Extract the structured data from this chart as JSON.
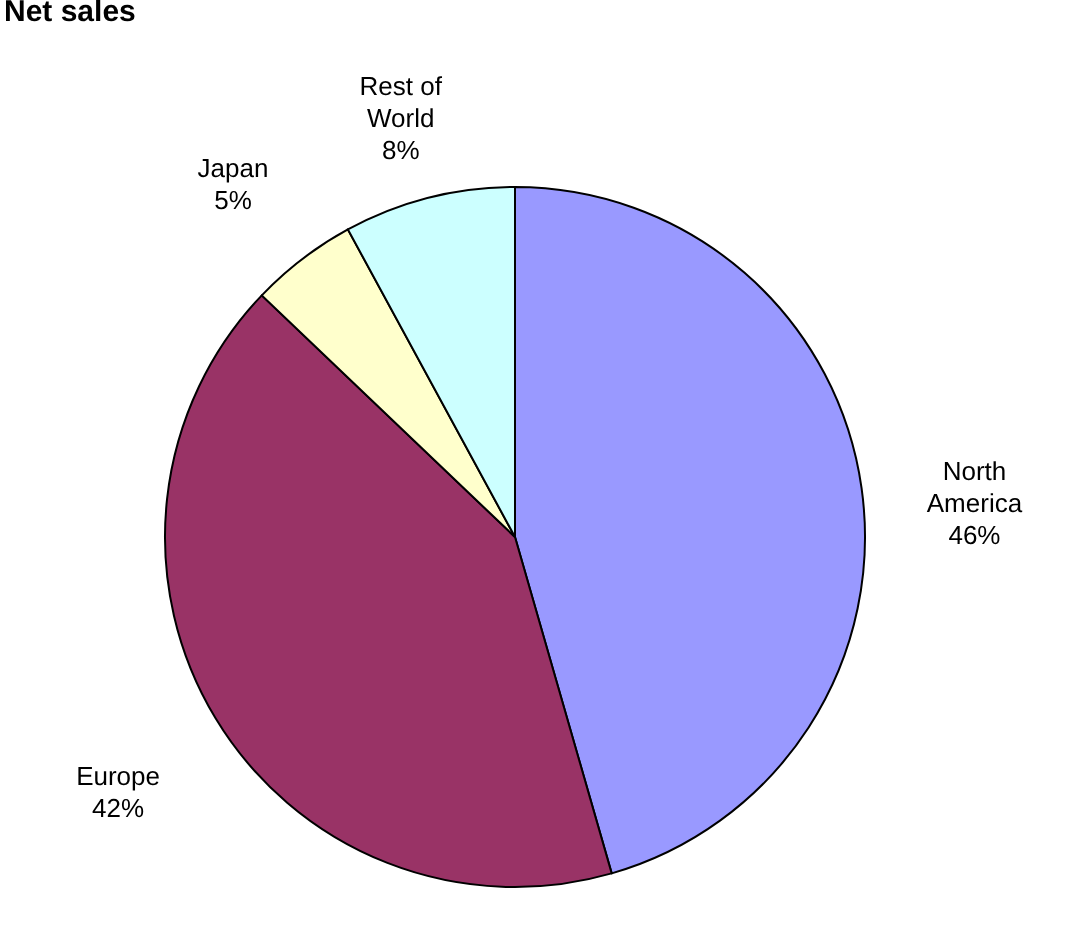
{
  "chart_data": {
    "type": "pie",
    "title": "Net sales",
    "categories": [
      "North America",
      "Europe",
      "Japan",
      "Rest of World"
    ],
    "values": [
      46,
      42,
      5,
      8
    ],
    "value_labels": [
      "46%",
      "42%",
      "5%",
      "8%"
    ],
    "colors": [
      "#9999ff",
      "#993366",
      "#ffffcc",
      "#ccffff"
    ],
    "legend": false
  }
}
